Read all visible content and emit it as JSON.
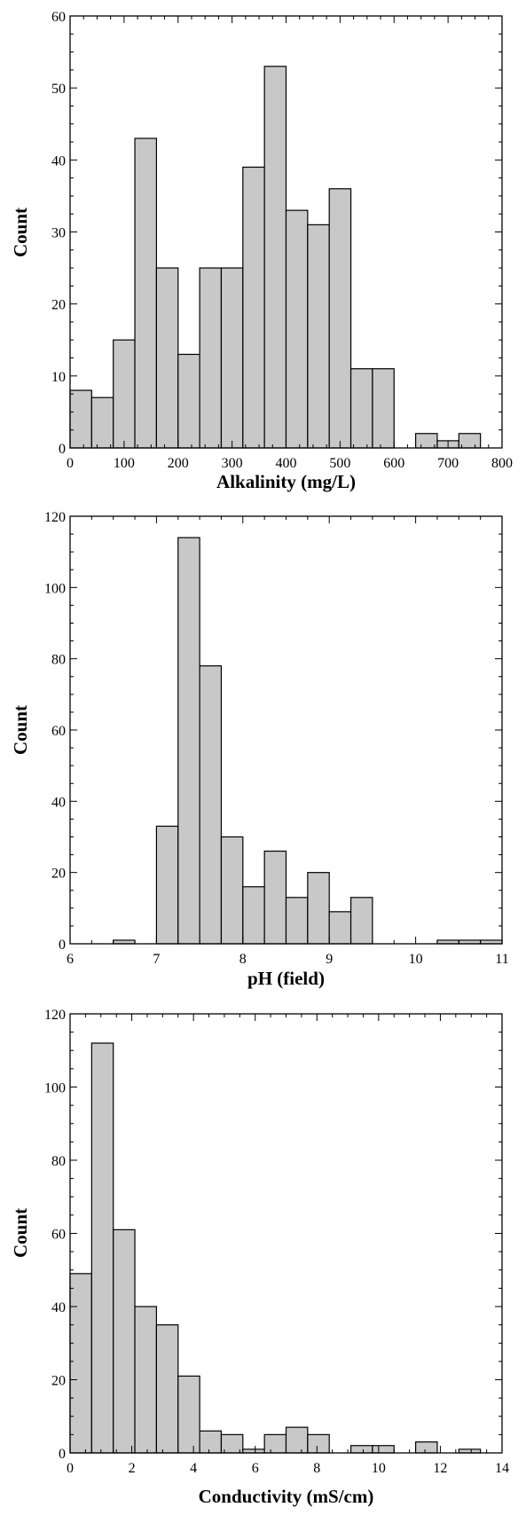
{
  "chart_data": [
    {
      "type": "bar",
      "title": "",
      "xlabel": "Alkalinity (mg/L)",
      "ylabel": "Count",
      "xlim": [
        0,
        800
      ],
      "ylim": [
        0,
        60
      ],
      "xticks": [
        0,
        100,
        200,
        300,
        400,
        500,
        600,
        700,
        800
      ],
      "yticks": [
        0,
        10,
        20,
        30,
        40,
        50,
        60
      ],
      "grid": false,
      "bins": [
        {
          "x0": 0,
          "x1": 40,
          "count": 8
        },
        {
          "x0": 40,
          "x1": 80,
          "count": 7
        },
        {
          "x0": 80,
          "x1": 120,
          "count": 15
        },
        {
          "x0": 120,
          "x1": 160,
          "count": 43
        },
        {
          "x0": 160,
          "x1": 200,
          "count": 25
        },
        {
          "x0": 200,
          "x1": 240,
          "count": 13
        },
        {
          "x0": 240,
          "x1": 280,
          "count": 25
        },
        {
          "x0": 280,
          "x1": 320,
          "count": 25
        },
        {
          "x0": 320,
          "x1": 360,
          "count": 39
        },
        {
          "x0": 360,
          "x1": 400,
          "count": 53
        },
        {
          "x0": 400,
          "x1": 440,
          "count": 33
        },
        {
          "x0": 440,
          "x1": 480,
          "count": 31
        },
        {
          "x0": 480,
          "x1": 520,
          "count": 36
        },
        {
          "x0": 520,
          "x1": 560,
          "count": 11
        },
        {
          "x0": 560,
          "x1": 600,
          "count": 11
        },
        {
          "x0": 640,
          "x1": 680,
          "count": 2
        },
        {
          "x0": 680,
          "x1": 720,
          "count": 1
        },
        {
          "x0": 720,
          "x1": 760,
          "count": 2
        }
      ]
    },
    {
      "type": "bar",
      "title": "",
      "xlabel": "pH (field)",
      "ylabel": "Count",
      "xlim": [
        6,
        11
      ],
      "ylim": [
        0,
        120
      ],
      "xticks": [
        6,
        7,
        8,
        9,
        10,
        11
      ],
      "yticks": [
        0,
        20,
        40,
        60,
        80,
        100,
        120
      ],
      "grid": false,
      "bins": [
        {
          "x0": 6.5,
          "x1": 6.75,
          "count": 1
        },
        {
          "x0": 7.0,
          "x1": 7.25,
          "count": 33
        },
        {
          "x0": 7.25,
          "x1": 7.5,
          "count": 114
        },
        {
          "x0": 7.5,
          "x1": 7.75,
          "count": 78
        },
        {
          "x0": 7.75,
          "x1": 8.0,
          "count": 30
        },
        {
          "x0": 8.0,
          "x1": 8.25,
          "count": 16
        },
        {
          "x0": 8.25,
          "x1": 8.5,
          "count": 26
        },
        {
          "x0": 8.5,
          "x1": 8.75,
          "count": 13
        },
        {
          "x0": 8.75,
          "x1": 9.0,
          "count": 20
        },
        {
          "x0": 9.0,
          "x1": 9.25,
          "count": 9
        },
        {
          "x0": 9.25,
          "x1": 9.5,
          "count": 13
        },
        {
          "x0": 10.25,
          "x1": 10.5,
          "count": 1
        },
        {
          "x0": 10.5,
          "x1": 10.75,
          "count": 1
        },
        {
          "x0": 10.75,
          "x1": 11.0,
          "count": 1
        }
      ]
    },
    {
      "type": "bar",
      "title": "",
      "xlabel": "Conductivity (mS/cm)",
      "ylabel": "Count",
      "xlim": [
        0,
        14
      ],
      "ylim": [
        0,
        120
      ],
      "xticks": [
        0,
        2,
        4,
        6,
        8,
        10,
        12,
        14
      ],
      "yticks": [
        0,
        20,
        40,
        60,
        80,
        100,
        120
      ],
      "grid": false,
      "bins": [
        {
          "x0": 0.0,
          "x1": 0.7,
          "count": 49
        },
        {
          "x0": 0.7,
          "x1": 1.4,
          "count": 112
        },
        {
          "x0": 1.4,
          "x1": 2.1,
          "count": 61
        },
        {
          "x0": 2.1,
          "x1": 2.8,
          "count": 40
        },
        {
          "x0": 2.8,
          "x1": 3.5,
          "count": 35
        },
        {
          "x0": 3.5,
          "x1": 4.2,
          "count": 21
        },
        {
          "x0": 4.2,
          "x1": 4.9,
          "count": 6
        },
        {
          "x0": 4.9,
          "x1": 5.6,
          "count": 5
        },
        {
          "x0": 5.6,
          "x1": 6.3,
          "count": 1
        },
        {
          "x0": 6.3,
          "x1": 7.0,
          "count": 5
        },
        {
          "x0": 7.0,
          "x1": 7.7,
          "count": 7
        },
        {
          "x0": 7.7,
          "x1": 8.4,
          "count": 5
        },
        {
          "x0": 9.1,
          "x1": 9.8,
          "count": 2
        },
        {
          "x0": 9.8,
          "x1": 10.5,
          "count": 2
        },
        {
          "x0": 11.2,
          "x1": 11.9,
          "count": 3
        },
        {
          "x0": 12.6,
          "x1": 13.3,
          "count": 1
        }
      ]
    }
  ]
}
